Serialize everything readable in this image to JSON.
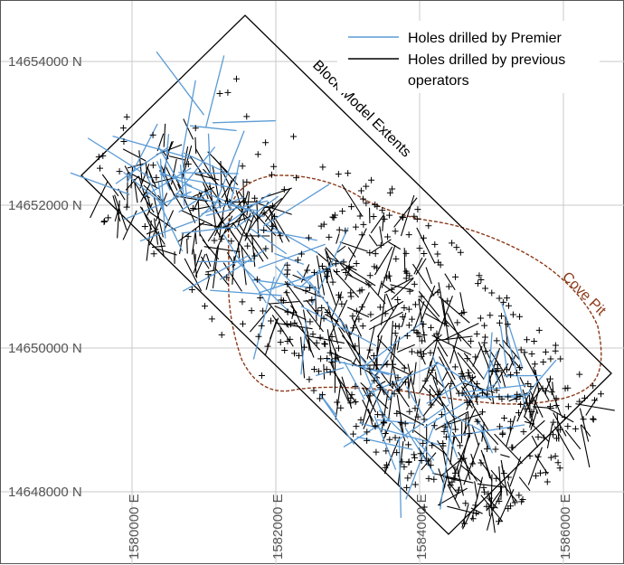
{
  "legend": {
    "premier": {
      "label": "Holes drilled by Premier",
      "color": "#5b9bd5"
    },
    "previous": {
      "label": "Holes drilled by previous",
      "label_line2": "operators",
      "color": "#000000"
    }
  },
  "labels": {
    "block_model": "Block Model Extents",
    "pit": "Cove Pit",
    "pit_color": "#8b3a1a"
  },
  "northings": [
    "14654000 N",
    "14652000 N",
    "14650000 N",
    "14648000 N"
  ],
  "eastings": [
    "1580000 E",
    "1582000 E",
    "1584000 E",
    "1586000 E"
  ]
}
